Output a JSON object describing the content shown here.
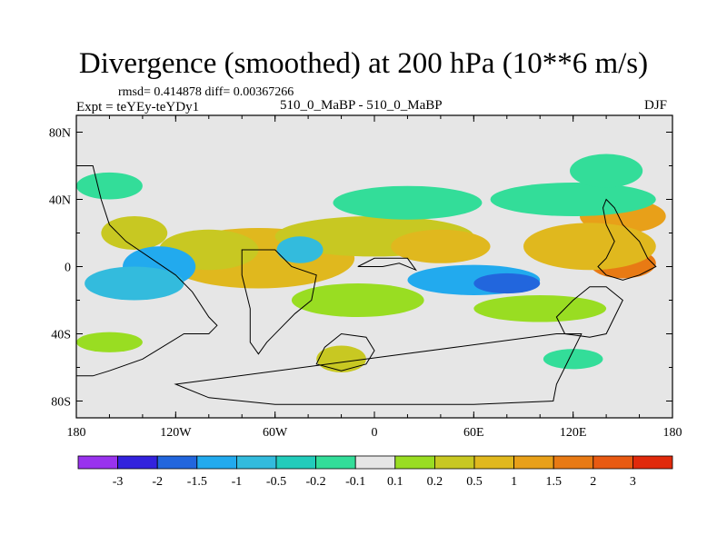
{
  "header": {
    "title": "Divergence (smoothed) at 200 hPa (10**6 m/s)",
    "stats": "rmsd= 0.414878 diff= 0.00367266",
    "experiment": "Expt = teYEy-teYDy1",
    "runs": "510_0_MaBP - 510_0_MaBP",
    "season": "DJF"
  },
  "chart_data": {
    "type": "heatmap",
    "title": "Divergence (smoothed) at 200 hPa (10**6 m/s)",
    "subtitle": "510_0_MaBP - 510_0_MaBP",
    "units": "10**6 m/s",
    "xlim": [
      -180,
      180
    ],
    "ylim": [
      -90,
      90
    ],
    "x_ticks": [
      {
        "value": -180,
        "label": "180"
      },
      {
        "value": -120,
        "label": "120W"
      },
      {
        "value": -60,
        "label": "60W"
      },
      {
        "value": 0,
        "label": "0"
      },
      {
        "value": 60,
        "label": "60E"
      },
      {
        "value": 120,
        "label": "120E"
      },
      {
        "value": 180,
        "label": "180"
      }
    ],
    "y_ticks": [
      {
        "value": 80,
        "label": "80N"
      },
      {
        "value": 40,
        "label": "40N"
      },
      {
        "value": 0,
        "label": "0"
      },
      {
        "value": -40,
        "label": "40S"
      },
      {
        "value": -80,
        "label": "80S"
      }
    ],
    "colorbar": {
      "colors": [
        "#9933ee",
        "#3322dd",
        "#2266dd",
        "#22aaee",
        "#33bbdd",
        "#22ccbb",
        "#33dd99",
        "#e6e6e6",
        "#99dd22",
        "#c8c822",
        "#e0b81e",
        "#e8a019",
        "#e87a14",
        "#e85a12",
        "#e02a0c"
      ],
      "labels": [
        "-3",
        "-2",
        "-1.5",
        "-1",
        "-0.5",
        "-0.2",
        "-0.1",
        "0.1",
        "0.2",
        "0.5",
        "1",
        "1.5",
        "2",
        "3"
      ]
    },
    "features": [
      {
        "lon": -80,
        "lat": 2,
        "rx": 22,
        "ry": 8,
        "level": 14
      },
      {
        "lon": -80,
        "lat": 2,
        "rx": 36,
        "ry": 13,
        "level": 12
      },
      {
        "lon": -70,
        "lat": 5,
        "rx": 58,
        "ry": 18,
        "level": 10
      },
      {
        "lon": -100,
        "lat": 10,
        "rx": 30,
        "ry": 12,
        "level": 9
      },
      {
        "lon": 150,
        "lat": 30,
        "rx": 26,
        "ry": 10,
        "level": 11
      },
      {
        "lon": 150,
        "lat": 2,
        "rx": 20,
        "ry": 9,
        "level": 12
      },
      {
        "lon": 130,
        "lat": 12,
        "rx": 40,
        "ry": 14,
        "level": 10
      },
      {
        "lon": 0,
        "lat": 18,
        "rx": 60,
        "ry": 12,
        "level": 9
      },
      {
        "lon": 40,
        "lat": 12,
        "rx": 30,
        "ry": 10,
        "level": 10
      },
      {
        "lon": -145,
        "lat": 20,
        "rx": 20,
        "ry": 10,
        "level": 9
      },
      {
        "lon": -130,
        "lat": 0,
        "rx": 22,
        "ry": 12,
        "level": 3
      },
      {
        "lon": -145,
        "lat": -10,
        "rx": 30,
        "ry": 10,
        "level": 4
      },
      {
        "lon": -45,
        "lat": 10,
        "rx": 14,
        "ry": 8,
        "level": 4
      },
      {
        "lon": 60,
        "lat": -8,
        "rx": 40,
        "ry": 9,
        "level": 3
      },
      {
        "lon": 80,
        "lat": -10,
        "rx": 20,
        "ry": 6,
        "level": 2
      },
      {
        "lon": 20,
        "lat": 38,
        "rx": 45,
        "ry": 10,
        "level": 6
      },
      {
        "lon": 120,
        "lat": 40,
        "rx": 50,
        "ry": 10,
        "level": 6
      },
      {
        "lon": 140,
        "lat": 57,
        "rx": 22,
        "ry": 10,
        "level": 6
      },
      {
        "lon": -160,
        "lat": 48,
        "rx": 20,
        "ry": 8,
        "level": 6
      },
      {
        "lon": -10,
        "lat": -20,
        "rx": 40,
        "ry": 10,
        "level": 8
      },
      {
        "lon": 100,
        "lat": -25,
        "rx": 40,
        "ry": 8,
        "level": 8
      },
      {
        "lon": -20,
        "lat": -55,
        "rx": 15,
        "ry": 8,
        "level": 9
      },
      {
        "lon": 120,
        "lat": -55,
        "rx": 18,
        "ry": 6,
        "level": 6
      },
      {
        "lon": -160,
        "lat": -45,
        "rx": 20,
        "ry": 6,
        "level": 8
      }
    ],
    "continent_outlines": [
      {
        "name": "south-america",
        "points": [
          [
            -80,
            10
          ],
          [
            -60,
            10
          ],
          [
            -50,
            0
          ],
          [
            -35,
            -5
          ],
          [
            -38,
            -20
          ],
          [
            -48,
            -28
          ],
          [
            -58,
            -38
          ],
          [
            -65,
            -45
          ],
          [
            -70,
            -52
          ],
          [
            -75,
            -45
          ],
          [
            -75,
            -25
          ],
          [
            -80,
            -5
          ]
        ]
      },
      {
        "name": "north-america",
        "points": [
          [
            -170,
            60
          ],
          [
            -165,
            40
          ],
          [
            -160,
            25
          ],
          [
            -150,
            15
          ],
          [
            -135,
            5
          ],
          [
            -120,
            -5
          ],
          [
            -110,
            -15
          ],
          [
            -100,
            -30
          ],
          [
            -95,
            -35
          ],
          [
            -100,
            -40
          ],
          [
            -115,
            -40
          ],
          [
            -140,
            -55
          ],
          [
            -160,
            -62
          ],
          [
            -170,
            -65
          ],
          [
            -180,
            -65
          ],
          [
            -180,
            60
          ]
        ]
      },
      {
        "name": "africa",
        "points": [
          [
            -10,
            0
          ],
          [
            5,
            0
          ],
          [
            15,
            2
          ],
          [
            25,
            -2
          ],
          [
            20,
            5
          ],
          [
            10,
            5
          ],
          [
            0,
            5
          ],
          [
            -10,
            0
          ]
        ]
      },
      {
        "name": "australia",
        "points": [
          [
            110,
            -30
          ],
          [
            115,
            -40
          ],
          [
            130,
            -42
          ],
          [
            140,
            -40
          ],
          [
            145,
            -30
          ],
          [
            150,
            -20
          ],
          [
            140,
            -12
          ],
          [
            130,
            -12
          ],
          [
            120,
            -20
          ]
        ]
      },
      {
        "name": "asia-islands",
        "points": [
          [
            140,
            40
          ],
          [
            145,
            35
          ],
          [
            150,
            25
          ],
          [
            160,
            15
          ],
          [
            165,
            5
          ],
          [
            170,
            0
          ],
          [
            160,
            -5
          ],
          [
            150,
            -8
          ],
          [
            140,
            -5
          ],
          [
            135,
            0
          ],
          [
            140,
            5
          ],
          [
            145,
            15
          ],
          [
            140,
            25
          ],
          [
            138,
            35
          ]
        ]
      },
      {
        "name": "antarctica-ridge",
        "points": [
          [
            -120,
            -70
          ],
          [
            -100,
            -78
          ],
          [
            -60,
            -82
          ],
          [
            0,
            -82
          ],
          [
            60,
            -82
          ],
          [
            108,
            -80
          ],
          [
            110,
            -70
          ],
          [
            115,
            -60
          ],
          [
            120,
            -50
          ],
          [
            125,
            -40
          ],
          [
            110,
            -40
          ]
        ]
      },
      {
        "name": "southern-loop",
        "points": [
          [
            -30,
            -48
          ],
          [
            -20,
            -40
          ],
          [
            -5,
            -42
          ],
          [
            0,
            -50
          ],
          [
            -5,
            -58
          ],
          [
            -20,
            -62
          ],
          [
            -35,
            -58
          ]
        ]
      }
    ]
  }
}
